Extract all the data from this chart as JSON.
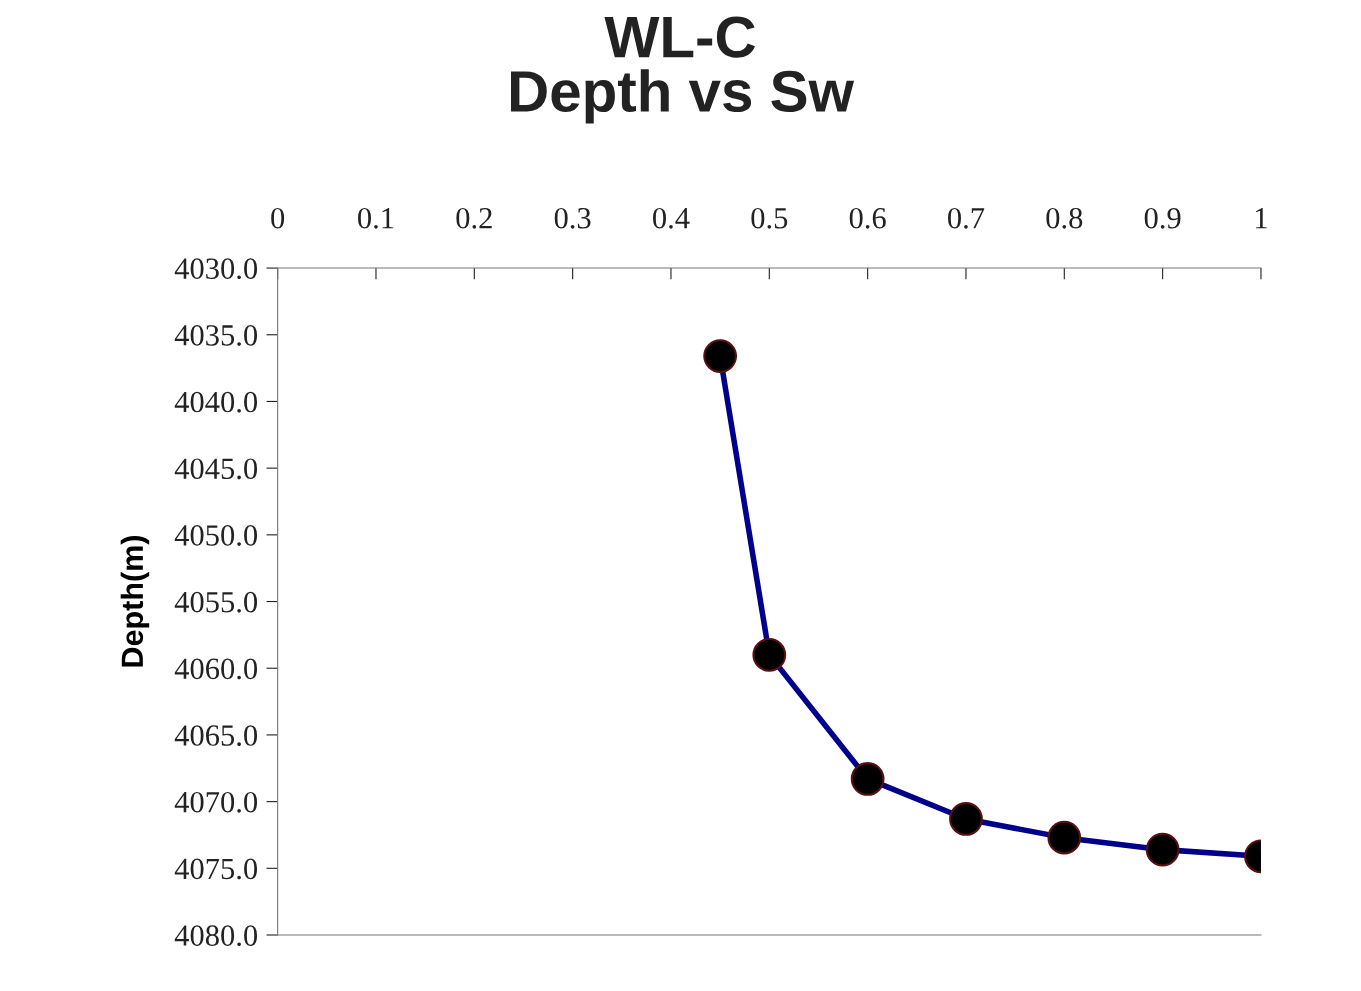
{
  "chart_data": {
    "type": "line",
    "title": "WL-C\nDepth vs Sw",
    "ylabel": "Depth(m)",
    "x": [
      0.45,
      0.5,
      0.6,
      0.7,
      0.8,
      0.9,
      1.0
    ],
    "series": [
      {
        "color": "#00008b",
        "values": [
          4036.6,
          4059.0,
          4068.3,
          4071.3,
          4072.7,
          4073.6,
          4074.1
        ]
      }
    ],
    "marker": "circle",
    "line_style": "solid",
    "grid": false,
    "xlim": [
      0,
      1
    ],
    "xticks": [
      0,
      0.1,
      0.2,
      0.3,
      0.4,
      0.5,
      0.6,
      0.7,
      0.8,
      0.9,
      1
    ],
    "ylim": [
      4080,
      4030
    ],
    "yticks": [
      {
        "value": 4030,
        "label": "4030.0"
      },
      {
        "value": 4035,
        "label": "4035.0"
      },
      {
        "value": 4040,
        "label": "4040.0"
      },
      {
        "value": 4045,
        "label": "4045.0"
      },
      {
        "value": 4050,
        "label": "4050.0"
      },
      {
        "value": 4055,
        "label": "4055.0"
      },
      {
        "value": 4060,
        "label": "4060.0"
      },
      {
        "value": 4065,
        "label": "4065.0"
      },
      {
        "value": 4070,
        "label": "4070.0"
      },
      {
        "value": 4075,
        "label": "4075.0"
      },
      {
        "value": 4080,
        "label": "4080.0"
      }
    ]
  }
}
